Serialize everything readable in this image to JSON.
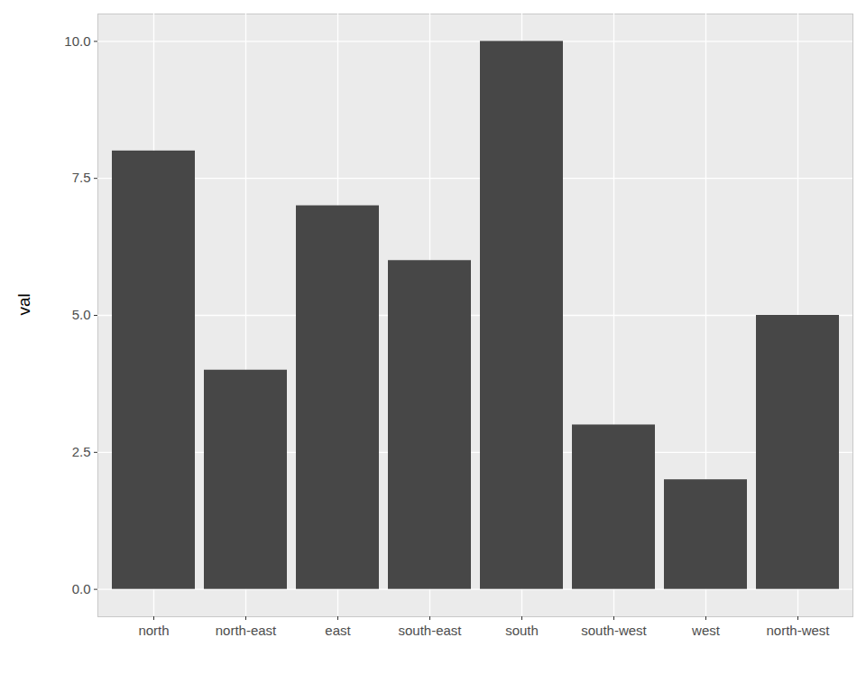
{
  "chart_data": {
    "type": "bar",
    "categories": [
      "north",
      "north-east",
      "east",
      "south-east",
      "south",
      "south-west",
      "west",
      "north-west"
    ],
    "values": [
      8,
      4,
      7,
      6,
      10,
      3,
      2,
      5
    ],
    "color": "#474747",
    "y_label": "val",
    "ylim": [
      -0.5,
      10.5
    ],
    "yticks": [
      {
        "value": 0,
        "label": "0.0"
      },
      {
        "value": 2.5,
        "label": "2.5"
      },
      {
        "value": 5,
        "label": "5.0"
      },
      {
        "value": 7.5,
        "label": "7.5"
      },
      {
        "value": 10,
        "label": "10.0"
      }
    ],
    "grid": true
  }
}
